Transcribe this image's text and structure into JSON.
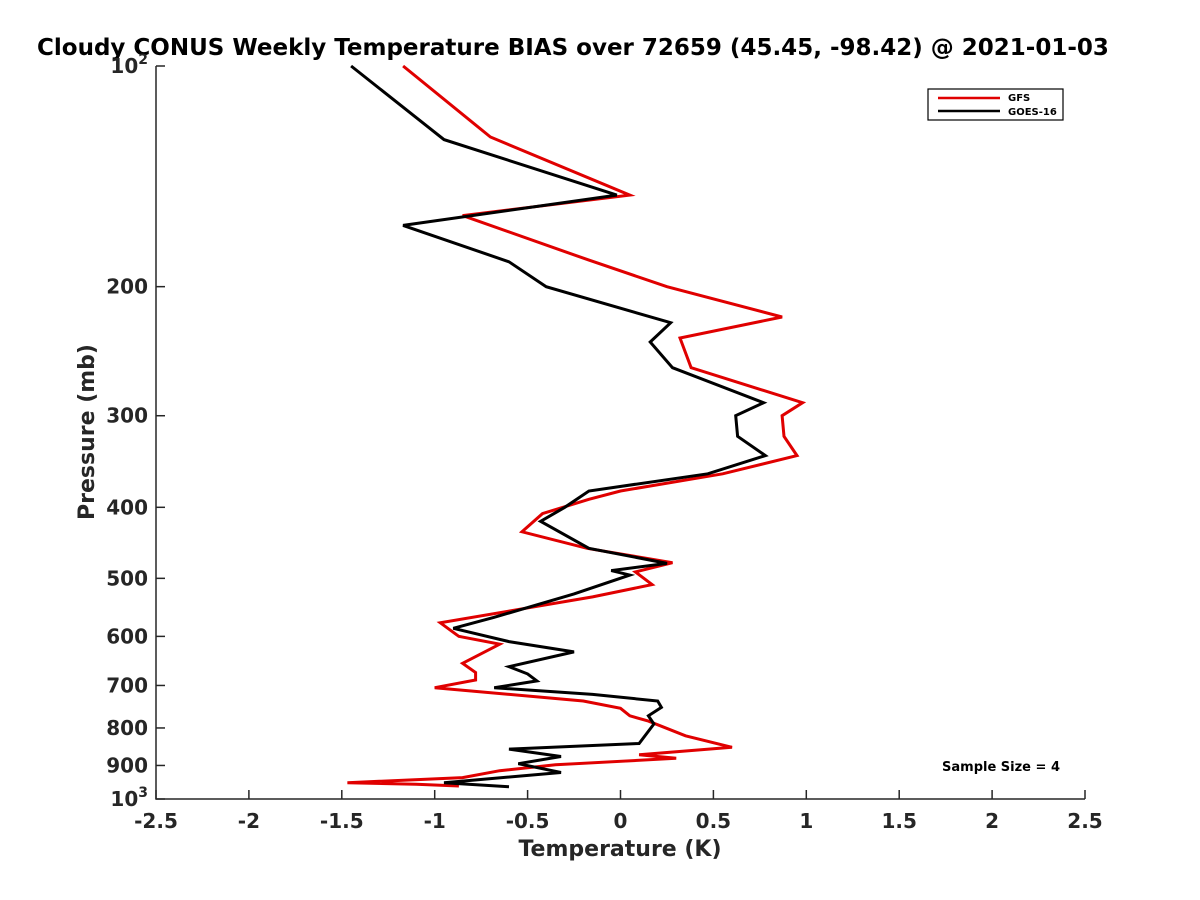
{
  "chart_data": {
    "type": "line",
    "title": "Cloudy CONUS Weekly Temperature BIAS over 72659 (45.45, -98.42) @ 2021-01-03",
    "xlabel": "Temperature (K)",
    "ylabel": "Pressure (mb)",
    "xlim": [
      -2.5,
      2.5
    ],
    "ylim": [
      1000,
      100
    ],
    "y_scale": "log",
    "y_reversed": true,
    "grid": false,
    "x_ticks": [
      -2.5,
      -2,
      -1.5,
      -1,
      -0.5,
      0,
      0.5,
      1,
      1.5,
      2,
      2.5
    ],
    "x_tick_labels": [
      "-2.5",
      "-2",
      "-1.5",
      "-1",
      "-0.5",
      "0",
      "0.5",
      "1",
      "1.5",
      "2",
      "2.5"
    ],
    "y_ticks": [
      {
        "value": 100,
        "base": "10",
        "exp": "2"
      },
      {
        "value": 200,
        "label": "200"
      },
      {
        "value": 300,
        "label": "300"
      },
      {
        "value": 400,
        "label": "400"
      },
      {
        "value": 500,
        "label": "500"
      },
      {
        "value": 600,
        "label": "600"
      },
      {
        "value": 700,
        "label": "700"
      },
      {
        "value": 800,
        "label": "800"
      },
      {
        "value": 900,
        "label": "900"
      },
      {
        "value": 1000,
        "base": "10",
        "exp": "3"
      }
    ],
    "legend": {
      "placement": "top-right"
    },
    "annotation": "Sample Size = 4",
    "series": [
      {
        "name": "GFS",
        "color": "#e00000",
        "points": [
          [
            -1.17,
            100
          ],
          [
            -0.7,
            125
          ],
          [
            0.05,
            150
          ],
          [
            -0.85,
            160
          ],
          [
            -0.17,
            184
          ],
          [
            0.25,
            200
          ],
          [
            0.87,
            220
          ],
          [
            0.32,
            235
          ],
          [
            0.38,
            258
          ],
          [
            0.98,
            288
          ],
          [
            0.87,
            300
          ],
          [
            0.88,
            320
          ],
          [
            0.95,
            340
          ],
          [
            0.55,
            360
          ],
          [
            0.0,
            380
          ],
          [
            -0.17,
            390
          ],
          [
            -0.42,
            408
          ],
          [
            -0.53,
            432
          ],
          [
            -0.18,
            455
          ],
          [
            0.28,
            476
          ],
          [
            0.08,
            490
          ],
          [
            0.17,
            510
          ],
          [
            -0.15,
            530
          ],
          [
            -0.97,
            575
          ],
          [
            -0.87,
            600
          ],
          [
            -0.65,
            615
          ],
          [
            -0.85,
            653
          ],
          [
            -0.78,
            672
          ],
          [
            -0.78,
            688
          ],
          [
            -1.0,
            705
          ],
          [
            -0.2,
            735
          ],
          [
            0.0,
            752
          ],
          [
            0.05,
            770
          ],
          [
            0.15,
            783
          ],
          [
            0.35,
            820
          ],
          [
            0.6,
            850
          ],
          [
            0.1,
            870
          ],
          [
            0.3,
            880
          ],
          [
            -0.35,
            898
          ],
          [
            -0.65,
            915
          ],
          [
            -0.85,
            935
          ],
          [
            -1.47,
            950
          ],
          [
            -1.1,
            955
          ],
          [
            -0.87,
            960
          ]
        ]
      },
      {
        "name": "GOES-16",
        "color": "#000000",
        "points": [
          [
            -1.45,
            100
          ],
          [
            -0.95,
            126
          ],
          [
            -0.02,
            150
          ],
          [
            -1.17,
            165
          ],
          [
            -0.6,
            185
          ],
          [
            -0.4,
            200
          ],
          [
            0.27,
            224
          ],
          [
            0.16,
            238
          ],
          [
            0.28,
            258
          ],
          [
            0.77,
            288
          ],
          [
            0.62,
            300
          ],
          [
            0.63,
            320
          ],
          [
            0.78,
            340
          ],
          [
            0.47,
            360
          ],
          [
            -0.17,
            380
          ],
          [
            -0.3,
            400
          ],
          [
            -0.43,
            418
          ],
          [
            -0.17,
            455
          ],
          [
            0.25,
            477
          ],
          [
            -0.05,
            488
          ],
          [
            0.05,
            495
          ],
          [
            -0.25,
            525
          ],
          [
            -0.68,
            565
          ],
          [
            -0.9,
            585
          ],
          [
            -0.6,
            610
          ],
          [
            -0.25,
            630
          ],
          [
            -0.6,
            660
          ],
          [
            -0.5,
            675
          ],
          [
            -0.45,
            690
          ],
          [
            -0.68,
            705
          ],
          [
            -0.15,
            720
          ],
          [
            0.2,
            735
          ],
          [
            0.22,
            750
          ],
          [
            0.15,
            770
          ],
          [
            0.18,
            790
          ],
          [
            0.1,
            840
          ],
          [
            -0.6,
            855
          ],
          [
            -0.32,
            875
          ],
          [
            -0.55,
            895
          ],
          [
            -0.32,
            920
          ],
          [
            -0.95,
            950
          ],
          [
            -0.6,
            962
          ]
        ]
      }
    ]
  }
}
